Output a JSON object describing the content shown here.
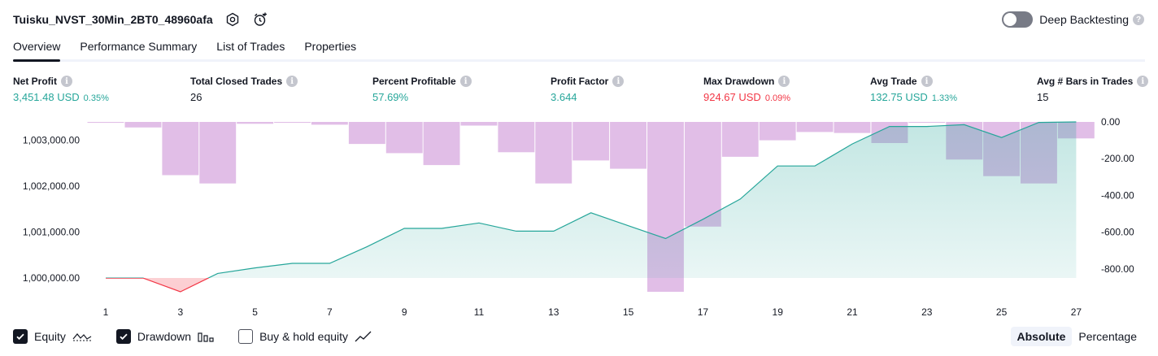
{
  "header": {
    "strategy_name": "Tuisku_NVST_30Min_2BT0_48960afa",
    "deep_backtesting_label": "Deep Backtesting",
    "deep_backtesting_enabled": false
  },
  "tabs": [
    {
      "label": "Overview",
      "active": true
    },
    {
      "label": "Performance Summary",
      "active": false
    },
    {
      "label": "List of Trades",
      "active": false
    },
    {
      "label": "Properties",
      "active": false
    }
  ],
  "metrics": [
    {
      "label": "Net Profit",
      "value": "3,451.48 USD",
      "pct": "0.35%",
      "color": "#26a69a"
    },
    {
      "label": "Total Closed Trades",
      "value": "26",
      "pct": "",
      "color": "#131722"
    },
    {
      "label": "Percent Profitable",
      "value": "57.69%",
      "pct": "",
      "color": "#26a69a"
    },
    {
      "label": "Profit Factor",
      "value": "3.644",
      "pct": "",
      "color": "#26a69a"
    },
    {
      "label": "Max Drawdown",
      "value": "924.67 USD",
      "pct": "0.09%",
      "color": "#f23645"
    },
    {
      "label": "Avg Trade",
      "value": "132.75 USD",
      "pct": "1.33%",
      "color": "#26a69a"
    },
    {
      "label": "Avg # Bars in Trades",
      "value": "15",
      "pct": "",
      "color": "#131722"
    }
  ],
  "chart_data": {
    "type": "area",
    "x_ticks": [
      "1",
      "3",
      "5",
      "7",
      "9",
      "11",
      "13",
      "15",
      "17",
      "19",
      "21",
      "23",
      "25",
      "27"
    ],
    "left_axis": {
      "ticks": [
        "1,003,000.00",
        "1,002,000.00",
        "1,001,000.00",
        "1,000,000.00"
      ],
      "tick_values": [
        1003000,
        1002000,
        1001000,
        1000000
      ],
      "ylim": [
        999700,
        1003400
      ]
    },
    "right_axis": {
      "ticks": [
        "0.00",
        "-200.00",
        "-400.00",
        "-600.00",
        "-800.00"
      ],
      "tick_values": [
        0,
        -200,
        -400,
        -600,
        -800
      ],
      "ylim": [
        -925,
        0
      ]
    },
    "series": [
      {
        "name": "Equity",
        "axis": "left",
        "color": "#26a69a",
        "x": [
          1,
          2,
          3,
          4,
          5,
          6,
          7,
          8,
          9,
          10,
          11,
          12,
          13,
          14,
          15,
          16,
          17,
          18,
          19,
          20,
          21,
          22,
          23,
          24,
          25,
          26,
          27
        ],
        "values": [
          1000000,
          1000000,
          999700,
          1000100,
          1000220,
          1000320,
          1000320,
          1000680,
          1001080,
          1001080,
          1001200,
          1001020,
          1001020,
          1001420,
          1001140,
          1000860,
          1001280,
          1001720,
          1002440,
          1002440,
          1002920,
          1003300,
          1003300,
          1003340,
          1003060,
          1003390,
          1003400
        ]
      },
      {
        "name": "Drawdown",
        "axis": "right",
        "color": "#e1bee7",
        "x": [
          1,
          2,
          3,
          4,
          5,
          6,
          7,
          8,
          9,
          10,
          11,
          12,
          13,
          14,
          15,
          16,
          17,
          18,
          19,
          20,
          21,
          22,
          23,
          24,
          25,
          26,
          27
        ],
        "values": [
          -5,
          -30,
          -290,
          -335,
          -10,
          -5,
          -15,
          -120,
          -170,
          -235,
          -20,
          -165,
          -335,
          -210,
          -255,
          -925,
          -570,
          -190,
          -100,
          -55,
          -60,
          -115,
          -5,
          -205,
          -295,
          -335,
          -90
        ]
      }
    ]
  },
  "legend": [
    {
      "label": "Equity",
      "checked": true
    },
    {
      "label": "Drawdown",
      "checked": true
    },
    {
      "label": "Buy & hold equity",
      "checked": false
    }
  ],
  "view_mode": {
    "absolute_label": "Absolute",
    "percentage_label": "Percentage",
    "selected": "Absolute"
  }
}
